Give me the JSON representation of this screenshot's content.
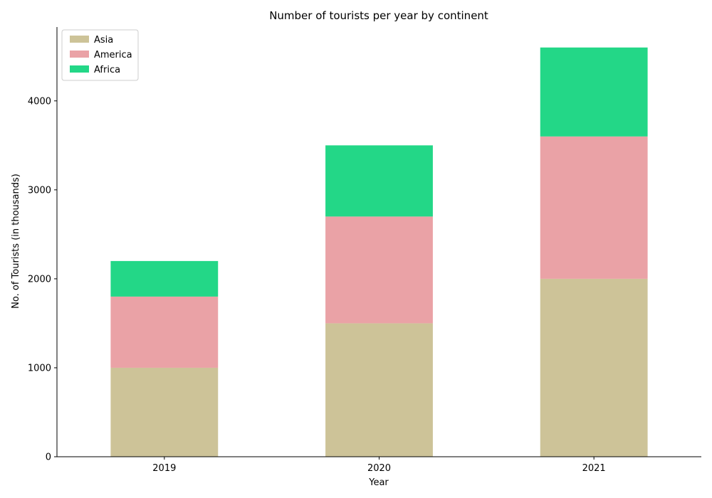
{
  "chart_data": {
    "type": "bar",
    "stacked": true,
    "title": "Number of tourists per year by continent",
    "xlabel": "Year",
    "ylabel": "No. of Tourists (in thousands)",
    "categories": [
      "2019",
      "2020",
      "2021"
    ],
    "ylim": [
      0,
      4830
    ],
    "yticks": [
      0,
      1000,
      2000,
      3000,
      4000
    ],
    "grid": false,
    "legend_position": "top-left",
    "series": [
      {
        "name": "Asia",
        "color": "#cdc398",
        "values": [
          1000,
          1500,
          2000
        ]
      },
      {
        "name": "America",
        "color": "#eaa2a6",
        "values": [
          800,
          1200,
          1600
        ]
      },
      {
        "name": "Africa",
        "color": "#23d787",
        "values": [
          400,
          800,
          1000
        ]
      }
    ]
  }
}
